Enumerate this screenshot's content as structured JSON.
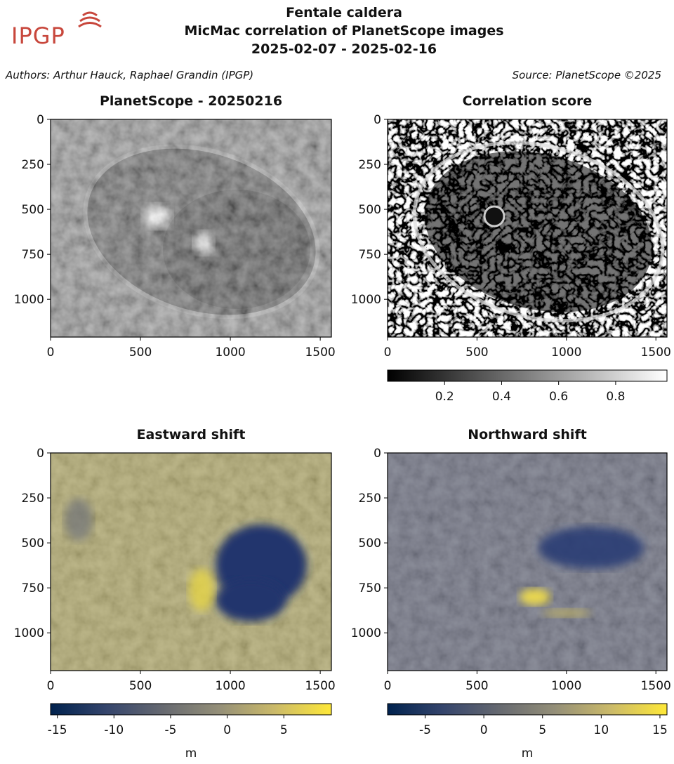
{
  "header": {
    "logo": "IPGP",
    "title_lines": [
      "Fentale caldera",
      "MicMac correlation of PlanetScope images",
      "2025-02-07 - 2025-02-16"
    ],
    "authors": "Authors: Arthur Hauck, Raphael Grandin (IPGP)",
    "source": "Source: PlanetScope ©2025"
  },
  "chart_data": [
    {
      "type": "image",
      "title": "PlanetScope - 20250216",
      "colormap": "gray",
      "xlim": [
        0,
        1562
      ],
      "ylim": [
        1210,
        0
      ],
      "xticks": [
        0,
        500,
        1000,
        1500
      ],
      "yticks": [
        0,
        250,
        500,
        750,
        1000
      ]
    },
    {
      "type": "image",
      "title": "Correlation score",
      "colormap": "gray",
      "xlim": [
        0,
        1562
      ],
      "ylim": [
        1210,
        0
      ],
      "xticks": [
        0,
        500,
        1000,
        1500
      ],
      "yticks": [
        0,
        250,
        500,
        750,
        1000
      ],
      "colorbar": {
        "clim": [
          0,
          0.98
        ],
        "ticks": [
          0.2,
          0.4,
          0.6,
          0.8
        ]
      }
    },
    {
      "type": "image",
      "title": "Eastward shift",
      "colormap": "cividis",
      "xlim": [
        0,
        1562
      ],
      "ylim": [
        1210,
        0
      ],
      "xticks": [
        0,
        500,
        1000,
        1500
      ],
      "yticks": [
        0,
        250,
        500,
        750,
        1000
      ],
      "colorbar": {
        "clim": [
          -15.6,
          9.2
        ],
        "ticks": [
          -15,
          -10,
          -5,
          0,
          5
        ],
        "label": "m"
      }
    },
    {
      "type": "image",
      "title": "Northward shift",
      "colormap": "cividis",
      "xlim": [
        0,
        1562
      ],
      "ylim": [
        1210,
        0
      ],
      "xticks": [
        0,
        500,
        1000,
        1500
      ],
      "yticks": [
        0,
        250,
        500,
        750,
        1000
      ],
      "colorbar": {
        "clim": [
          -8.2,
          15.6
        ],
        "ticks": [
          -5,
          0,
          5,
          10,
          15
        ],
        "label": "m"
      }
    }
  ]
}
